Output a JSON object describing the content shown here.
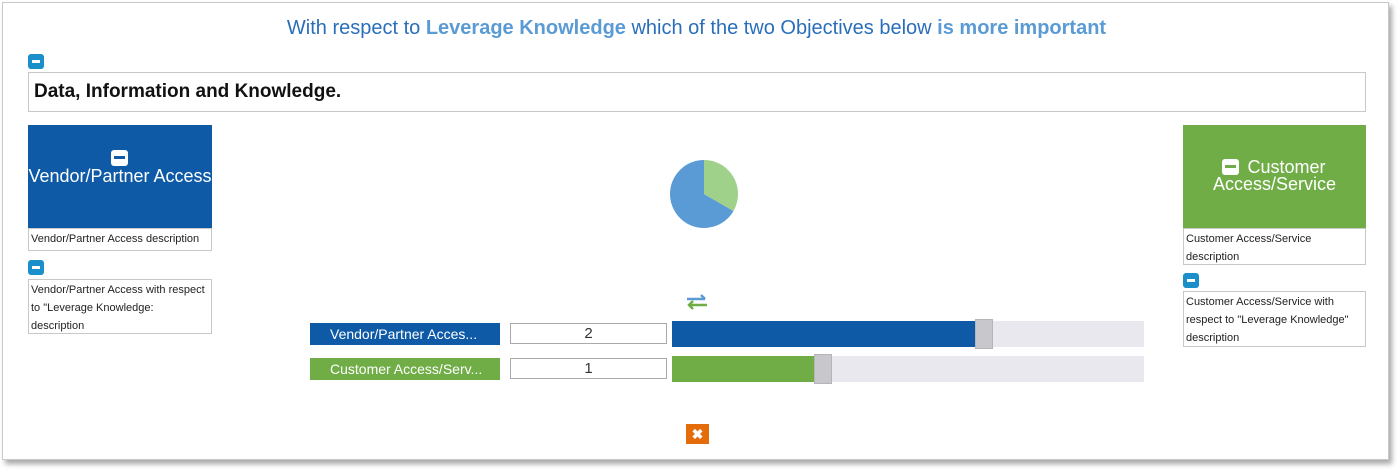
{
  "header": {
    "prefix": "With respect to ",
    "goal": "Leverage Knowledge",
    "middle": " which of the two Objectives below ",
    "emphasis": "is more important"
  },
  "group_title": "Data, Information and Knowledge.",
  "left_objective": {
    "name": "Vendor/Partner Access",
    "description": "Vendor/Partner Access description",
    "respect_description": "Vendor/Partner Access with respect to \"Leverage Knowledge: description",
    "color": "#0e5aa7"
  },
  "right_objective": {
    "name": "Customer Access/Service",
    "description": "Customer Access/Service description",
    "respect_description": "Customer Access/Service with respect to \"Leverage Knowledge\" description",
    "color": "#70ad47"
  },
  "comparison": {
    "rows": [
      {
        "label": "Vendor/Partner Acces...",
        "value": "2",
        "fill_fraction": 0.65,
        "color": "#0e5aa7"
      },
      {
        "label": "Customer Access/Serv...",
        "value": "1",
        "fill_fraction": 0.31,
        "color": "#70ad47"
      }
    ]
  },
  "pie": {
    "slices": [
      {
        "name": "Vendor/Partner Access",
        "share": 0.667,
        "color": "#5b9bd5"
      },
      {
        "name": "Customer Access/Service",
        "share": 0.333,
        "color": "#9fd18b"
      }
    ]
  },
  "icons": {
    "collapse": "minus-icon",
    "swap": "swap-arrows-icon",
    "close": "close-icon"
  }
}
